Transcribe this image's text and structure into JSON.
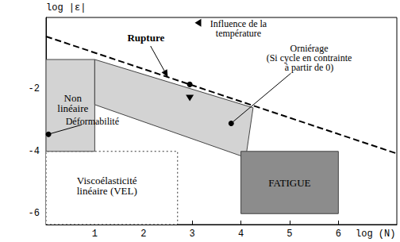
{
  "chart_data": {
    "type": "diagram",
    "x_label": "log (N)",
    "y_label": "log |ε|",
    "xlim": [
      0,
      7.2
    ],
    "ylim": [
      -6.35,
      0.3
    ],
    "xticks": [
      1,
      2,
      3,
      4,
      5,
      6
    ],
    "yticks": [
      -6,
      -4,
      -2
    ],
    "regions": [
      {
        "points": [
          [
            0,
            -6.35
          ],
          [
            2.7,
            -6.35
          ],
          [
            2.7,
            -4
          ],
          [
            0,
            -4
          ]
        ],
        "color": "#ffffff",
        "line_style": "dotted",
        "text": "Viscoélasticité\nlinéaire (VEL)",
        "at": [
          1.25,
          -5.1
        ]
      },
      {
        "points": [
          [
            0,
            -4
          ],
          [
            1,
            -4
          ],
          [
            1,
            -1.05
          ],
          [
            0,
            -1.05
          ]
        ],
        "color": "#d3d3d3",
        "line_style": "solid",
        "text": "Non\nlinéaire",
        "at": [
          0.55,
          -2.45
        ]
      },
      {
        "points": [
          [
            1,
            -1.05
          ],
          [
            4.25,
            -2.6
          ],
          [
            4.1,
            -4.2
          ],
          [
            1,
            -2.5
          ]
        ],
        "color": "#d3d3d3",
        "line_style": "solid"
      },
      {
        "points": [
          [
            4,
            -6
          ],
          [
            6,
            -6
          ],
          [
            6,
            -4
          ],
          [
            4,
            -4
          ]
        ],
        "color": "#8c8c8c",
        "line_style": "solid",
        "text": "FATIGUE",
        "at": [
          5,
          -5
        ]
      }
    ],
    "lines": [
      {
        "x": [
          0,
          7.2
        ],
        "y": [
          -0.31,
          -4.07
        ],
        "line_style": "dashed",
        "color": "#000000"
      }
    ],
    "annotations": [
      {
        "text": "Rupture",
        "at": [
          2.05,
          -0.35
        ],
        "point": [
          2.5,
          -1.615
        ],
        "marker": "arrow"
      },
      {
        "text": "Influence de la\ntempérature",
        "at": [
          3.95,
          -0.05
        ],
        "point": [
          2.95,
          -1.85
        ],
        "marker": "triangle"
      },
      {
        "text": "Déformabilité",
        "at": [
          0.95,
          -3.05
        ],
        "point": [
          0.05,
          -3.45
        ],
        "marker": "circle"
      },
      {
        "text": "Orniérage\n(Si cycle en contrainte\nà partir de 0)",
        "at": [
          5.4,
          -1.0
        ],
        "point": [
          3.8,
          -3.1
        ],
        "marker": "circle"
      }
    ]
  }
}
